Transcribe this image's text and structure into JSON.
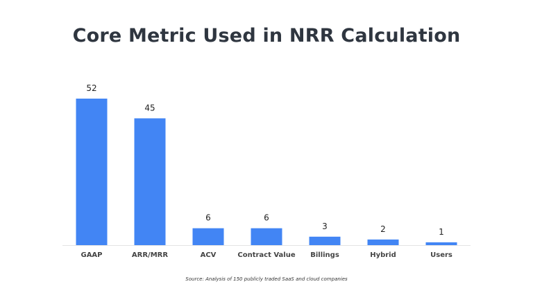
{
  "chart_data": {
    "type": "bar",
    "title": "Core Metric Used in NRR Calculation",
    "categories": [
      "GAAP",
      "ARR/MRR",
      "ACV",
      "Contract Value",
      "Billings",
      "Hybrid",
      "Users"
    ],
    "values": [
      52,
      45,
      6,
      6,
      3,
      2,
      1
    ],
    "xlabel": "",
    "ylabel": "",
    "ylim": [
      0,
      52
    ],
    "grid": false,
    "data_labels": true,
    "bar_color": "#4285f4",
    "source": "Source: Analysis of 150 publicly traded SaaS and cloud companies"
  }
}
